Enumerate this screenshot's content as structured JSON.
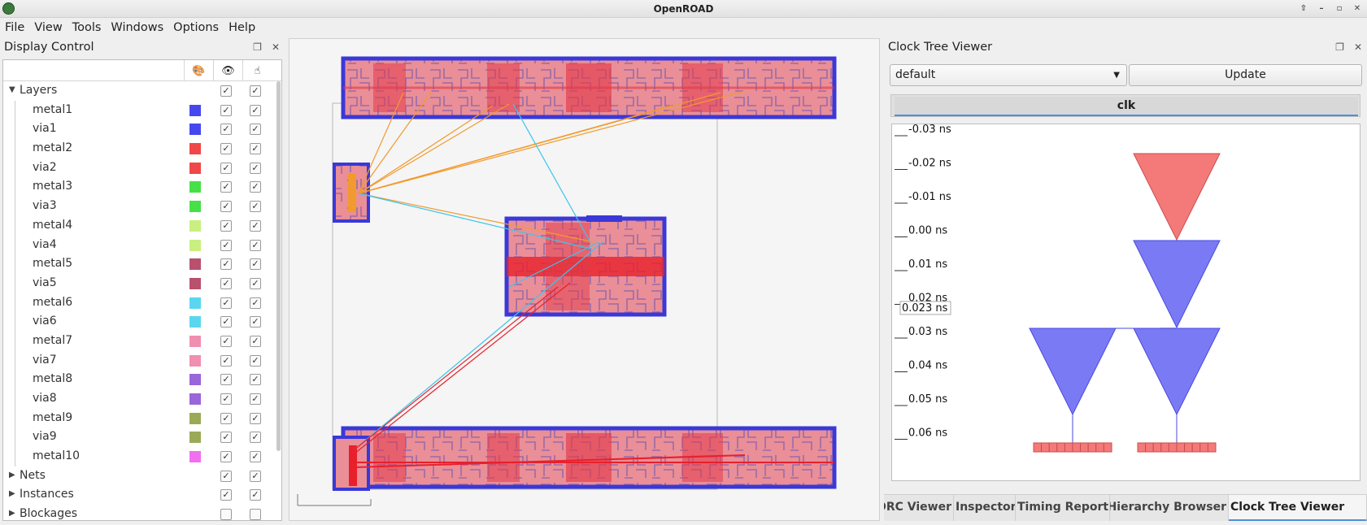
{
  "window": {
    "title": "OpenROAD"
  },
  "menu": [
    "File",
    "View",
    "Tools",
    "Windows",
    "Options",
    "Help"
  ],
  "display_control": {
    "title": "Display Control",
    "layers_label": "Layers",
    "layers": [
      {
        "name": "metal1",
        "color": "#4747f0"
      },
      {
        "name": "via1",
        "color": "#4747f0"
      },
      {
        "name": "metal2",
        "color": "#f04747"
      },
      {
        "name": "via2",
        "color": "#f04747"
      },
      {
        "name": "metal3",
        "color": "#47e047"
      },
      {
        "name": "via3",
        "color": "#47e047"
      },
      {
        "name": "metal4",
        "color": "#c9ef80"
      },
      {
        "name": "via4",
        "color": "#c9ef80"
      },
      {
        "name": "metal5",
        "color": "#b8506e"
      },
      {
        "name": "via5",
        "color": "#b8506e"
      },
      {
        "name": "metal6",
        "color": "#5ad7ef"
      },
      {
        "name": "via6",
        "color": "#5ad7ef"
      },
      {
        "name": "metal7",
        "color": "#f08fb0"
      },
      {
        "name": "via7",
        "color": "#f08fb0"
      },
      {
        "name": "metal8",
        "color": "#9a66d9"
      },
      {
        "name": "via8",
        "color": "#9a66d9"
      },
      {
        "name": "metal9",
        "color": "#9aaa57"
      },
      {
        "name": "via9",
        "color": "#9aaa57"
      },
      {
        "name": "metal10",
        "color": "#f070f0"
      }
    ],
    "groups": [
      "Nets",
      "Instances",
      "Blockages"
    ]
  },
  "clock_tree_viewer": {
    "title": "Clock Tree Viewer",
    "selected_clock": "default",
    "update_label": "Update",
    "tab": "clk",
    "axis_ticks": [
      "-0.03 ns",
      "-0.02 ns",
      "-0.01 ns",
      "0.00 ns",
      "0.01 ns",
      "0.02 ns",
      "0.03 ns",
      "0.04 ns",
      "0.05 ns",
      "0.06 ns"
    ],
    "marker": "0.023 ns"
  },
  "bottom_tabs": [
    "DRC Viewer",
    "Inspector",
    "Timing Report",
    "Hierarchy Browser",
    "Clock Tree Viewer"
  ]
}
